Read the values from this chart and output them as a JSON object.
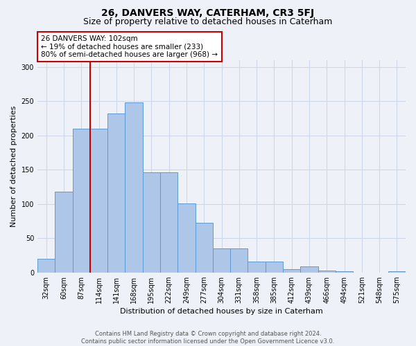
{
  "title": "26, DANVERS WAY, CATERHAM, CR3 5FJ",
  "subtitle": "Size of property relative to detached houses in Caterham",
  "xlabel": "Distribution of detached houses by size in Caterham",
  "ylabel": "Number of detached properties",
  "categories": [
    "32sqm",
    "60sqm",
    "87sqm",
    "114sqm",
    "141sqm",
    "168sqm",
    "195sqm",
    "222sqm",
    "249sqm",
    "277sqm",
    "304sqm",
    "331sqm",
    "358sqm",
    "385sqm",
    "412sqm",
    "439sqm",
    "466sqm",
    "494sqm",
    "521sqm",
    "548sqm",
    "575sqm"
  ],
  "values": [
    20,
    118,
    210,
    210,
    232,
    248,
    146,
    146,
    101,
    72,
    35,
    35,
    16,
    16,
    5,
    9,
    3,
    2,
    0,
    0,
    2
  ],
  "bar_color": "#aec6e8",
  "bar_edge_color": "#5b9bd5",
  "grid_color": "#ccd6e8",
  "background_color": "#eef2f8",
  "vline_color": "#cc0000",
  "annotation_text": "26 DANVERS WAY: 102sqm\n← 19% of detached houses are smaller (233)\n80% of semi-detached houses are larger (968) →",
  "annotation_box_color": "#ffffff",
  "annotation_box_edge_color": "#cc0000",
  "footer_line1": "Contains HM Land Registry data © Crown copyright and database right 2024.",
  "footer_line2": "Contains public sector information licensed under the Open Government Licence v3.0.",
  "ylim": [
    0,
    310
  ],
  "yticks": [
    0,
    50,
    100,
    150,
    200,
    250,
    300
  ],
  "title_fontsize": 10,
  "subtitle_fontsize": 9,
  "axis_label_fontsize": 8,
  "tick_fontsize": 7,
  "footer_fontsize": 6,
  "vline_pos": 2.5
}
